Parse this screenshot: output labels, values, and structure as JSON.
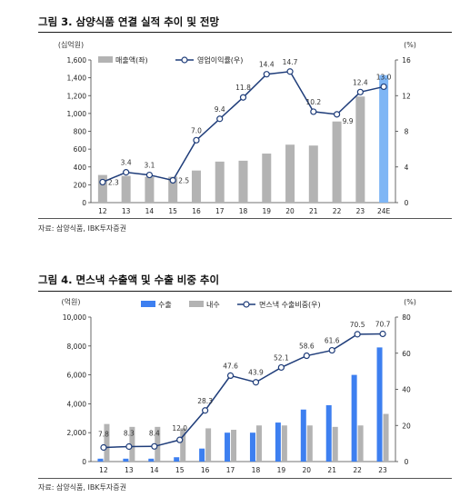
{
  "chart_data": [
    {
      "type": "bar+line",
      "title": "그림 3. 삼양식품 연결 실적 추이 및 전망",
      "y_left_unit": "(십억원)",
      "y_right_unit": "(%)",
      "categories": [
        "12",
        "13",
        "14",
        "15",
        "16",
        "17",
        "18",
        "19",
        "20",
        "21",
        "22",
        "23",
        "24E"
      ],
      "ylim_left": [
        0,
        1600
      ],
      "yticks_left": [
        "0",
        "200",
        "400",
        "600",
        "800",
        "1,000",
        "1,200",
        "1,400",
        "1,600"
      ],
      "ylim_right": [
        0,
        16
      ],
      "yticks_right": [
        "0",
        "4",
        "8",
        "12",
        "16"
      ],
      "series": [
        {
          "name": "매출액(좌)",
          "kind": "bar",
          "color": "#b3b3b3",
          "highlight_last_color": "#7fb6f5",
          "values": [
            310,
            300,
            290,
            290,
            360,
            460,
            470,
            550,
            650,
            640,
            910,
            1190,
            1430
          ]
        },
        {
          "name": "영업이익률(우)",
          "kind": "line",
          "color": "#1f3d7a",
          "values": [
            2.3,
            3.4,
            3.1,
            2.5,
            7.0,
            9.4,
            11.8,
            14.4,
            14.7,
            10.2,
            9.9,
            12.4,
            13.0
          ],
          "labels": [
            "2.3",
            "3.4",
            "3.1",
            "2.5",
            "7.0",
            "9.4",
            "11.8",
            "14.4",
            "14.7",
            "10.2",
            "9.9",
            "12.4",
            "13.0"
          ]
        }
      ],
      "legend": "top-left",
      "source": "자료: 삼양식품, IBK투자증권"
    },
    {
      "type": "bar+line",
      "title": "그림 4. 면스낵 수출액 및 수출 비중 추이",
      "y_left_unit": "(억원)",
      "y_right_unit": "(%)",
      "categories": [
        "12",
        "13",
        "14",
        "15",
        "16",
        "17",
        "18",
        "19",
        "20",
        "21",
        "22",
        "23"
      ],
      "ylim_left": [
        0,
        10000
      ],
      "yticks_left": [
        "0",
        "2,000",
        "4,000",
        "6,000",
        "8,000",
        "10,000"
      ],
      "ylim_right": [
        0,
        80
      ],
      "yticks_right": [
        "0",
        "20",
        "40",
        "60",
        "80"
      ],
      "series": [
        {
          "name": "수출",
          "kind": "bar",
          "color": "#3d7ff0",
          "values": [
            200,
            200,
            200,
            300,
            900,
            2000,
            2000,
            2700,
            3600,
            3900,
            6000,
            7900
          ]
        },
        {
          "name": "내수",
          "kind": "bar",
          "color": "#b3b3b3",
          "values": [
            2600,
            2400,
            2400,
            2300,
            2300,
            2200,
            2500,
            2500,
            2500,
            2400,
            2500,
            3300
          ]
        },
        {
          "name": "면스낵 수출비중(우)",
          "kind": "line",
          "color": "#1f3d7a",
          "values": [
            7.8,
            8.3,
            8.4,
            12.0,
            28.3,
            47.6,
            43.9,
            52.1,
            58.6,
            61.6,
            70.5,
            70.7
          ],
          "labels": [
            "7.8",
            "8.3",
            "8.4",
            "12.0",
            "28.3",
            "47.6",
            "43.9",
            "52.1",
            "58.6",
            "61.6",
            "70.5",
            "70.7"
          ]
        }
      ],
      "legend": "top-center",
      "source": "자료: 삼양식품, IBK투자증권"
    }
  ]
}
